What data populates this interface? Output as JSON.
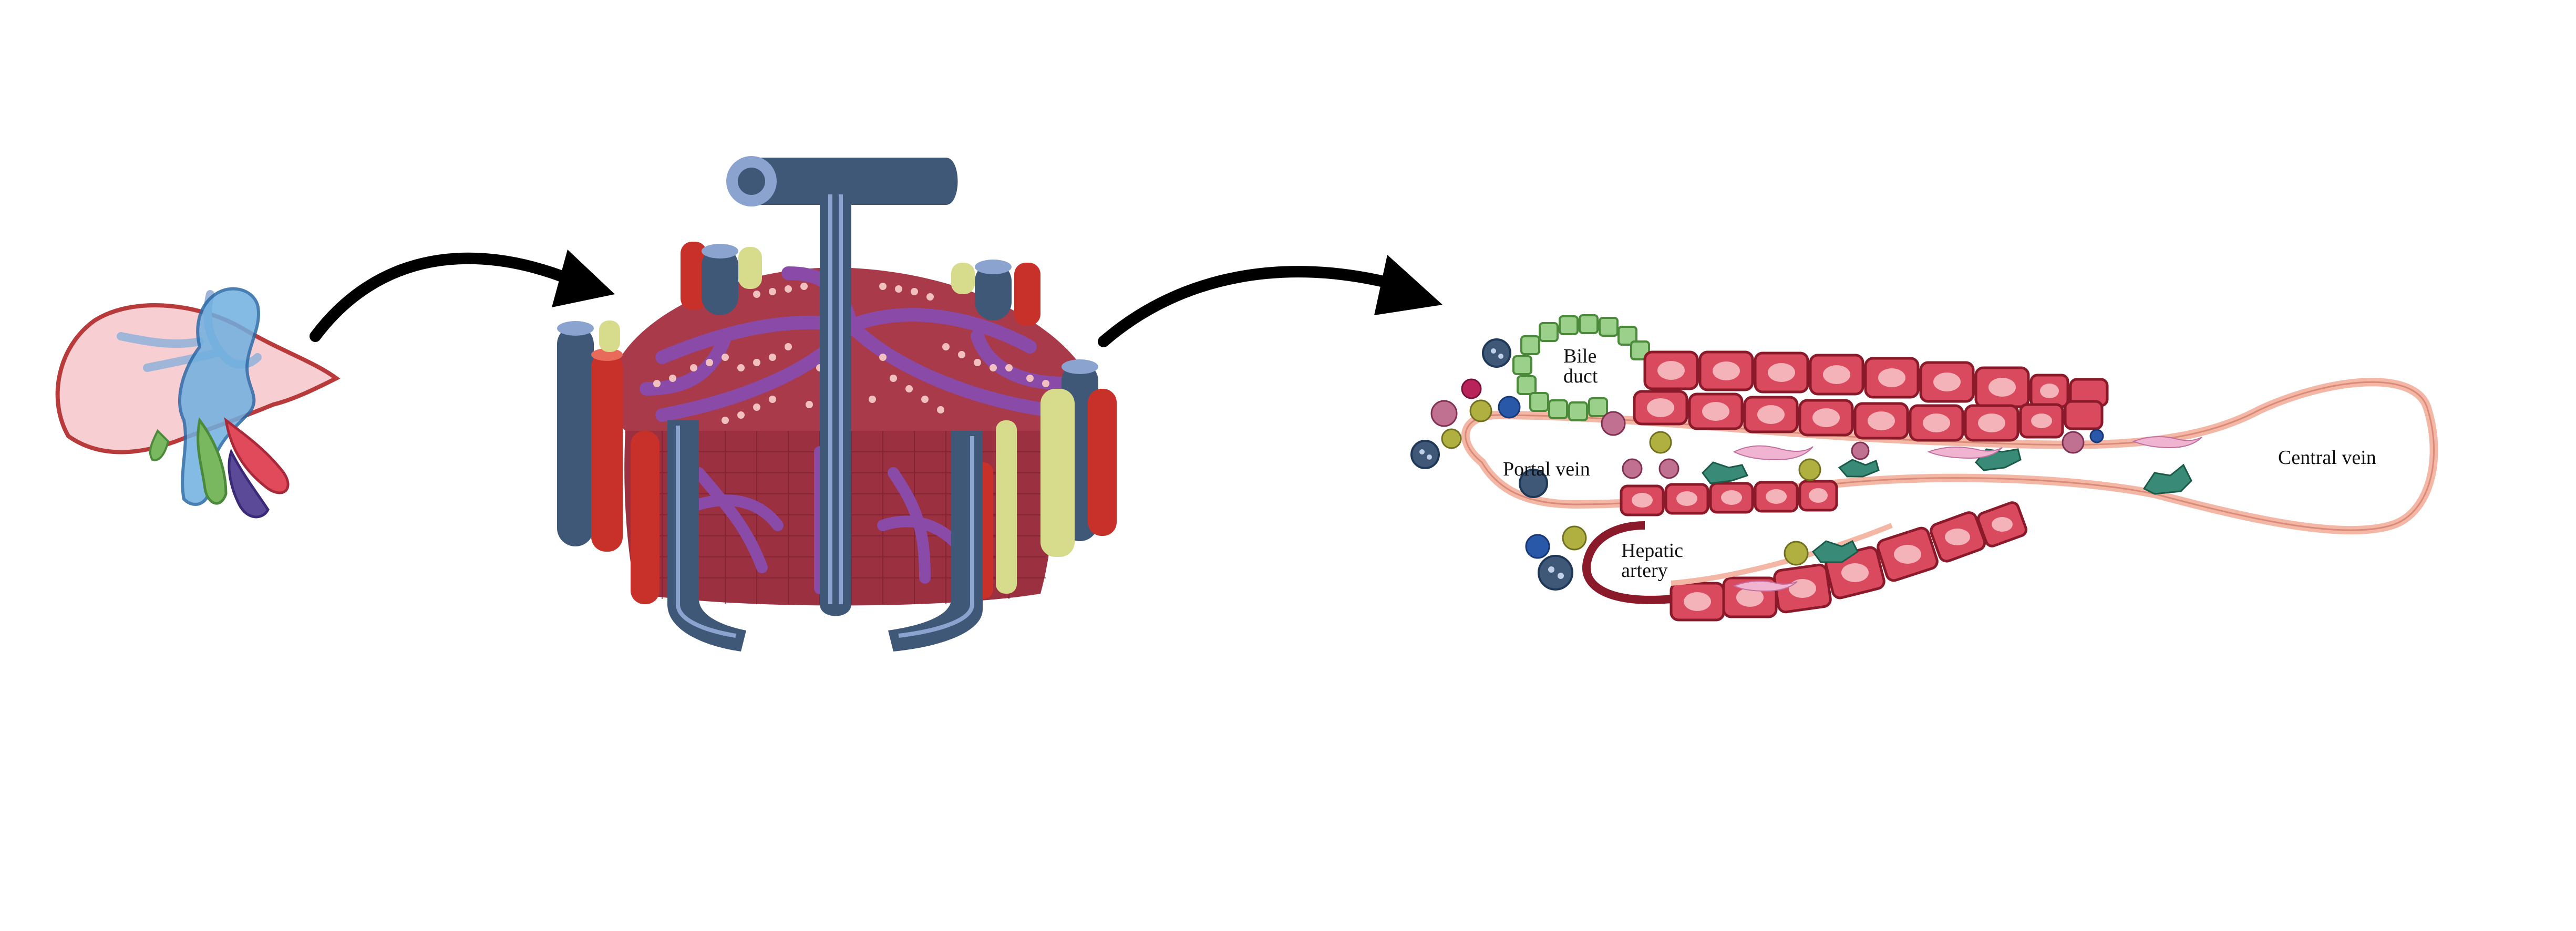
{
  "labels": {
    "bile_duct_line1": "Bile",
    "bile_duct_line2": "duct",
    "portal_vein": "Portal vein",
    "central_vein": "Central vein",
    "hepatic_artery_line1": "Hepatic",
    "hepatic_artery_line2": "artery"
  },
  "colors": {
    "vein": "#3f5878",
    "vein_light": "#8aa3cf",
    "artery": "#c8302a",
    "bile": "#d6dc8c",
    "parenchyma": "#a83a4a",
    "sinusoid": "#8a4aa8",
    "liver_fill": "#f7cfd3",
    "liver_outline": "#b83a3a",
    "hepatocyte": "#d94a5e",
    "hepatocyte_nucleus": "#f3b3b8",
    "bile_duct_cell": "#9bd08a",
    "endothelium": "#f4b7a5",
    "kupffer": "#3a8a78",
    "arrow": "#000000"
  }
}
